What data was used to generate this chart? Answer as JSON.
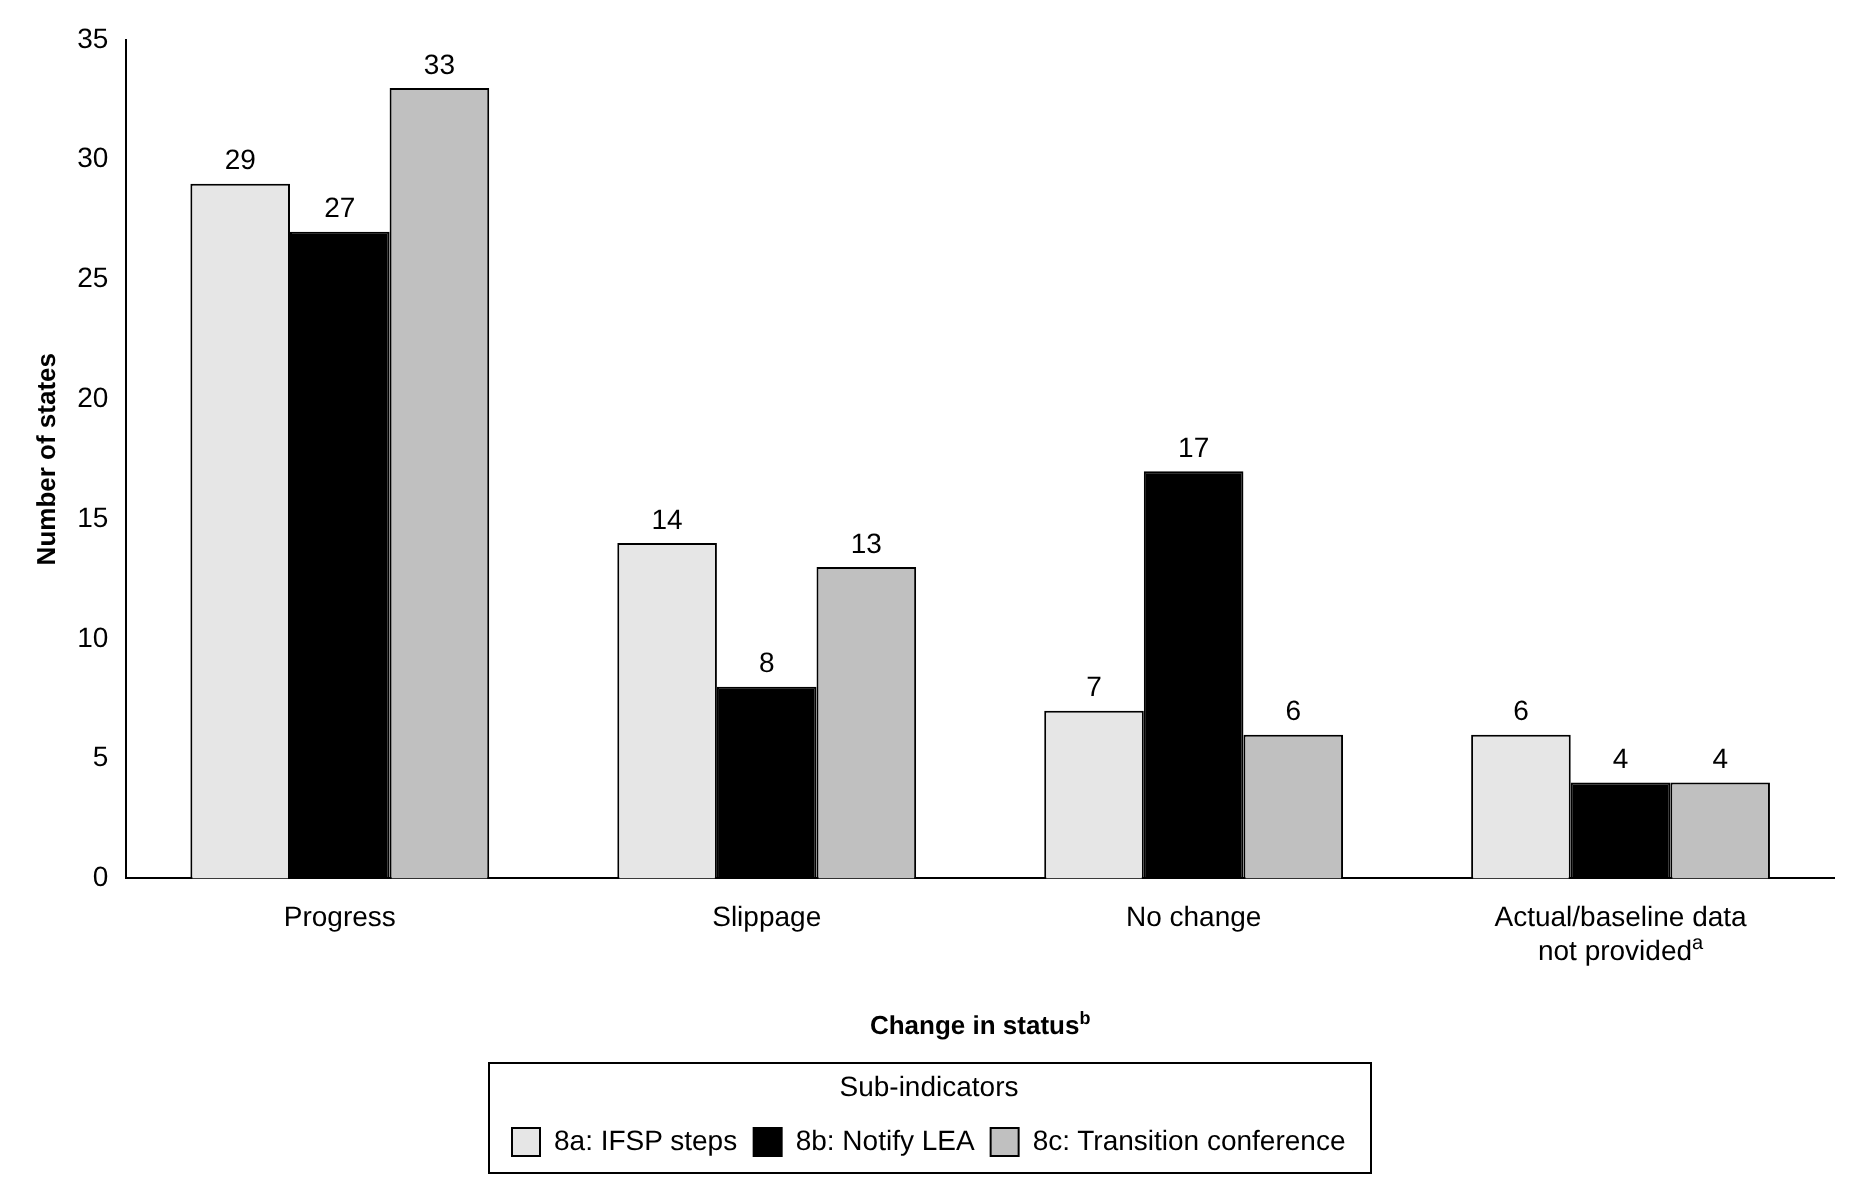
{
  "chart_data": {
    "type": "bar",
    "xlabel": "Change in status$^{b}$",
    "ylabel": "Number of states",
    "categories": [
      "Progress",
      "Slippage",
      "No change",
      "Actual/baseline data not provided$^{a}$"
    ],
    "series": [
      {
        "name": "8a: IFSP steps",
        "color": "#e6e6e6",
        "values": [
          29,
          14,
          7,
          6
        ]
      },
      {
        "name": "8b: Notify LEA",
        "color": "#000000",
        "values": [
          27,
          8,
          17,
          4
        ]
      },
      {
        "name": "8c: Transition conference",
        "color": "#c0c0c0",
        "values": [
          33,
          13,
          6,
          4
        ]
      }
    ],
    "ylim": [
      0,
      35
    ],
    "yticks": [
      0,
      5,
      10,
      15,
      20,
      25,
      30,
      35
    ],
    "data_labels": true,
    "legend": "bottom",
    "legend_title": "Sub-indicators"
  }
}
